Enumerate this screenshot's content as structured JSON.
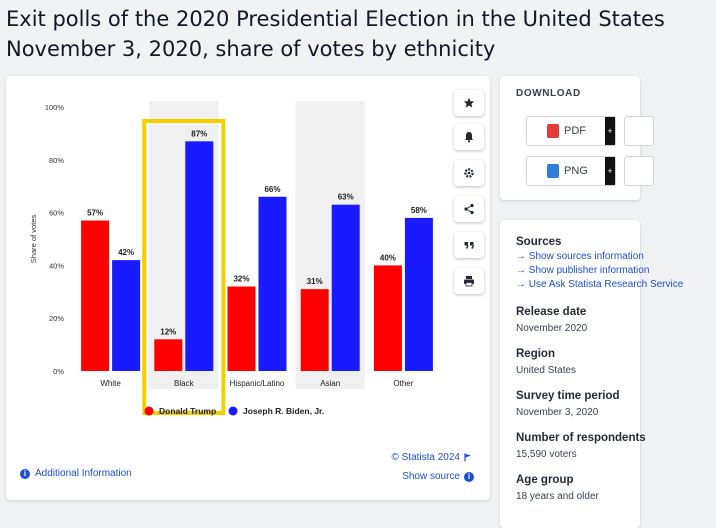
{
  "page": {
    "title_line1": "Exit polls of the 2020 Presidential Election in the United States",
    "title_line2": "November 3, 2020, share of votes by ethnicity"
  },
  "chart_data": {
    "type": "bar",
    "categories": [
      "White",
      "Black",
      "Hispanic/Latino",
      "Asian",
      "Other"
    ],
    "series": [
      {
        "name": "Donald Trump",
        "values": [
          57,
          12,
          32,
          31,
          40
        ],
        "color": "#ff0000"
      },
      {
        "name": "Joseph R. Biden, Jr.",
        "values": [
          42,
          87,
          66,
          63,
          58
        ],
        "color": "#1a1aff"
      }
    ],
    "ylabel": "Share of votes",
    "ylim": [
      0,
      100
    ],
    "yticks": [
      0,
      20,
      40,
      60,
      80,
      100
    ],
    "ytick_labels": [
      "0%",
      "20%",
      "40%",
      "60%",
      "80%",
      "100%"
    ],
    "value_suffix": "%",
    "highlighted_category": "Black",
    "highlight_color": "#f5d000",
    "shaded_categories": [
      "Black",
      "Asian"
    ],
    "legend_position": "bottom",
    "grid": false
  },
  "chart_tools": {
    "icons": [
      "star-icon",
      "bell-icon",
      "gear-icon",
      "share-icon",
      "quote-icon",
      "print-icon"
    ]
  },
  "footer": {
    "additional_info": "Additional Information",
    "copyright": "© Statista 2024",
    "show_source": "Show source"
  },
  "download": {
    "title": "DOWNLOAD",
    "buttons": [
      {
        "label": "PDF",
        "plus": "+",
        "icon_color": "#e23b3b"
      },
      {
        "label": "PNG",
        "plus": "+",
        "icon_color": "#2f7fd8"
      }
    ]
  },
  "info": {
    "sources_title": "Sources",
    "sources_links": [
      "Show sources information",
      "Show publisher information",
      "Use Ask Statista Research Service"
    ],
    "sections": [
      {
        "title": "Release date",
        "value": "November 2020"
      },
      {
        "title": "Region",
        "value": "United States"
      },
      {
        "title": "Survey time period",
        "value": "November 3, 2020"
      },
      {
        "title": "Number of respondents",
        "value": "15,590 voters"
      },
      {
        "title": "Age group",
        "value": "18 years and older"
      }
    ]
  }
}
